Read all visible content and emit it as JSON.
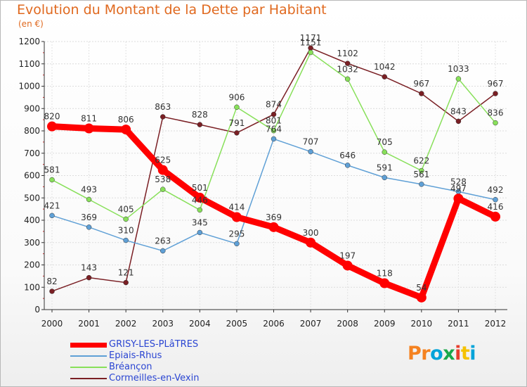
{
  "title": "Evolution du Montant de la Dette par Habitant",
  "subtitle": "(en €)",
  "logo": {
    "text": "Proxiti",
    "colors": [
      "#f58220",
      "#f58220",
      "#00a3d9",
      "#1aa84b",
      "#e83e2d",
      "#f5c200",
      "#00a3d9"
    ]
  },
  "chart_data": {
    "type": "line",
    "x": [
      "2000",
      "2001",
      "2002",
      "2003",
      "2004",
      "2005",
      "2006",
      "2007",
      "2008",
      "2009",
      "2010",
      "2011",
      "2012"
    ],
    "yticks": [
      "0",
      "100",
      "200",
      "300",
      "400",
      "500",
      "600",
      "700",
      "800",
      "900",
      "1000",
      "1100",
      "1200"
    ],
    "ylim": [
      0,
      1200
    ],
    "grid": true,
    "legend": "bottom-left",
    "series": [
      {
        "name": "Cormeilles-en-Vexin",
        "color": "#7a1f24",
        "bold": false,
        "values": [
          82,
          143,
          121,
          863,
          828,
          791,
          874,
          1171,
          1102,
          1042,
          967,
          843,
          967
        ]
      },
      {
        "name": "Bréançon",
        "color": "#88e05a",
        "bold": false,
        "values": [
          581,
          493,
          405,
          538,
          446,
          906,
          801,
          1151,
          1032,
          705,
          622,
          1033,
          836
        ]
      },
      {
        "name": "Epiais-Rhus",
        "color": "#5fa0d6",
        "bold": false,
        "values": [
          421,
          369,
          310,
          263,
          345,
          295,
          764,
          707,
          646,
          591,
          561,
          528,
          492
        ]
      },
      {
        "name": "GRISY-LES-PLâTRES",
        "color": "#ff0000",
        "bold": true,
        "values": [
          820,
          811,
          806,
          625,
          501,
          414,
          369,
          300,
          197,
          118,
          54,
          497,
          416
        ]
      }
    ],
    "legend_order": [
      3,
      2,
      1,
      0
    ],
    "labels": {
      "Cormeilles-en-Vexin": [
        "82",
        "143",
        "121",
        "863",
        "828",
        "791",
        "874",
        "1171",
        "1102",
        "1042",
        "967",
        "843",
        "967"
      ],
      "Bréançon": [
        "581",
        "493",
        "405",
        "538",
        "446",
        "906",
        "801",
        "1151",
        "1032",
        "705",
        "622",
        "1033",
        "836"
      ],
      "Epiais-Rhus": [
        "421",
        "369",
        "310",
        "263",
        "345",
        "295",
        "764",
        "707",
        "646",
        "591",
        "561",
        "528",
        "492"
      ],
      "GRISY-LES-PLâTRES": [
        "820",
        "811",
        "806",
        "625",
        "501",
        "414",
        "369",
        "300",
        "197",
        "118",
        "54",
        "497",
        "416"
      ]
    }
  }
}
